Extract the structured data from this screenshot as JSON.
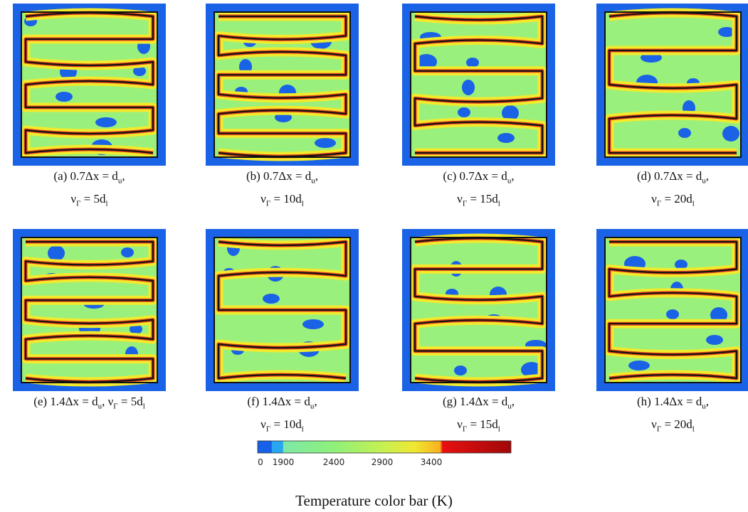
{
  "panels": [
    {
      "caption": [
        [
          {
            "text": "(a) 0.7Δx = d"
          },
          {
            "sub": "u"
          },
          {
            "text": ","
          }
        ],
        [
          {
            "text": "ν"
          },
          {
            "sub": "Γ"
          },
          {
            "text": " = 5d"
          },
          {
            "sub": "l"
          }
        ]
      ]
    },
    {
      "caption": [
        [
          {
            "text": "(b) 0.7Δx = d"
          },
          {
            "sub": "u"
          },
          {
            "text": ","
          }
        ],
        [
          {
            "text": "ν"
          },
          {
            "sub": "Γ"
          },
          {
            "text": " = 10d"
          },
          {
            "sub": "l"
          }
        ]
      ]
    },
    {
      "caption": [
        [
          {
            "text": "(c) 0.7Δx = d"
          },
          {
            "sub": "u"
          },
          {
            "text": ","
          }
        ],
        [
          {
            "text": "ν"
          },
          {
            "sub": "Γ"
          },
          {
            "text": " = 15d"
          },
          {
            "sub": "l"
          }
        ]
      ]
    },
    {
      "caption": [
        [
          {
            "text": "(d) 0.7Δx = d"
          },
          {
            "sub": "u"
          },
          {
            "text": ","
          }
        ],
        [
          {
            "text": "ν"
          },
          {
            "sub": "Γ"
          },
          {
            "text": " = 20d"
          },
          {
            "sub": "l"
          }
        ]
      ]
    },
    {
      "caption": [
        [
          {
            "text": "(e) 1.4Δx = d"
          },
          {
            "sub": "u"
          },
          {
            "text": ", ν"
          },
          {
            "sub": "Γ"
          },
          {
            "text": " = 5d"
          },
          {
            "sub": "l"
          }
        ]
      ]
    },
    {
      "caption": [
        [
          {
            "text": "(f) 1.4Δx = d"
          },
          {
            "sub": "u"
          },
          {
            "text": ","
          }
        ],
        [
          {
            "text": "ν"
          },
          {
            "sub": "Γ"
          },
          {
            "text": " = 10d"
          },
          {
            "sub": "l"
          }
        ]
      ]
    },
    {
      "caption": [
        [
          {
            "text": "(g) 1.4Δx = d"
          },
          {
            "sub": "u"
          },
          {
            "text": ","
          }
        ],
        [
          {
            "text": "ν"
          },
          {
            "sub": "Γ"
          },
          {
            "text": " = 15d"
          },
          {
            "sub": "l"
          }
        ]
      ]
    },
    {
      "caption": [
        [
          {
            "text": "(h) 1.4Δx = d"
          },
          {
            "sub": "u"
          },
          {
            "text": ","
          }
        ],
        [
          {
            "text": "ν"
          },
          {
            "sub": "Γ"
          },
          {
            "text": " = 20d"
          },
          {
            "sub": "l"
          }
        ]
      ]
    }
  ],
  "colorbar": {
    "ticks": [
      0,
      1900,
      2400,
      2900,
      3400
    ],
    "caption": "Temperature color bar (K)"
  }
}
